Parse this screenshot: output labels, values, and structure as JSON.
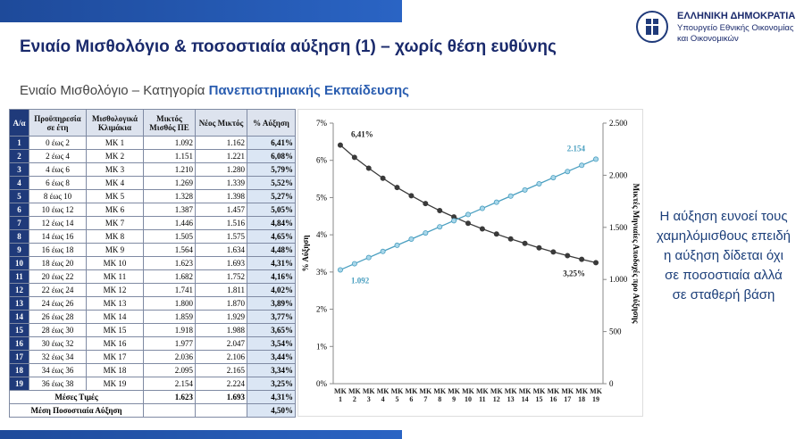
{
  "header": {
    "title": "Ενιαίο Μισθολόγιο & ποσοστιαία αύξηση (1) – χωρίς θέση ευθύνης",
    "subtitle": "Ενιαίο Μισθολόγιο – Κατηγορία ",
    "subtitle_bold": "Πανεπιστημιακής Εκπαίδευσης"
  },
  "logo": {
    "line1": "ΕΛΛΗΝΙΚΗ ΔΗΜΟΚΡΑΤΙΑ",
    "line2": "Υπουργείο Εθνικής Οικονομίας",
    "line3": "και Οικονομικών"
  },
  "table": {
    "columns": [
      "Α/α",
      "Προϋπηρεσία σε έτη",
      "Μισθολογικά Κλιμάκια",
      "Μικτός Μισθός ΠΕ",
      "Νέος Μικτός",
      "% Αύξηση"
    ],
    "rows": [
      [
        "1",
        "0 έως 2",
        "ΜΚ 1",
        "1.092",
        "1.162",
        "6,41%"
      ],
      [
        "2",
        "2 έως 4",
        "ΜΚ 2",
        "1.151",
        "1.221",
        "6,08%"
      ],
      [
        "3",
        "4 έως 6",
        "ΜΚ 3",
        "1.210",
        "1.280",
        "5,79%"
      ],
      [
        "4",
        "6 έως 8",
        "ΜΚ 4",
        "1.269",
        "1.339",
        "5,52%"
      ],
      [
        "5",
        "8 έως 10",
        "ΜΚ 5",
        "1.328",
        "1.398",
        "5,27%"
      ],
      [
        "6",
        "10 έως 12",
        "ΜΚ 6",
        "1.387",
        "1.457",
        "5,05%"
      ],
      [
        "7",
        "12 έως 14",
        "ΜΚ 7",
        "1.446",
        "1.516",
        "4,84%"
      ],
      [
        "8",
        "14 έως 16",
        "ΜΚ 8",
        "1.505",
        "1.575",
        "4,65%"
      ],
      [
        "9",
        "16 έως 18",
        "ΜΚ 9",
        "1.564",
        "1.634",
        "4,48%"
      ],
      [
        "10",
        "18 έως 20",
        "ΜΚ 10",
        "1.623",
        "1.693",
        "4,31%"
      ],
      [
        "11",
        "20 έως 22",
        "ΜΚ 11",
        "1.682",
        "1.752",
        "4,16%"
      ],
      [
        "12",
        "22 έως 24",
        "ΜΚ 12",
        "1.741",
        "1.811",
        "4,02%"
      ],
      [
        "13",
        "24 έως 26",
        "ΜΚ 13",
        "1.800",
        "1.870",
        "3,89%"
      ],
      [
        "14",
        "26 έως 28",
        "ΜΚ 14",
        "1.859",
        "1.929",
        "3,77%"
      ],
      [
        "15",
        "28 έως 30",
        "ΜΚ 15",
        "1.918",
        "1.988",
        "3,65%"
      ],
      [
        "16",
        "30 έως 32",
        "ΜΚ 16",
        "1.977",
        "2.047",
        "3,54%"
      ],
      [
        "17",
        "32 έως 34",
        "ΜΚ 17",
        "2.036",
        "2.106",
        "3,44%"
      ],
      [
        "18",
        "34 έως 36",
        "ΜΚ 18",
        "2.095",
        "2.165",
        "3,34%"
      ],
      [
        "19",
        "36 έως 38",
        "ΜΚ 19",
        "2.154",
        "2.224",
        "3,25%"
      ]
    ],
    "averages": {
      "label": "Μέσες Τιμές",
      "values": [
        "1.623",
        "1.693",
        "4,31%"
      ]
    },
    "mean_increase": {
      "label": "Μέση Ποσοστιαία Αύξηση",
      "value": "4,50%"
    }
  },
  "chart_data": {
    "type": "line",
    "y_label": "% Αύξηση",
    "y2_label": "Μικτές Μηνιαίες Αποδοχές προ Αύξησης",
    "categories": [
      "ΜΚ 1",
      "ΜΚ 2",
      "ΜΚ 3",
      "ΜΚ 4",
      "ΜΚ 5",
      "ΜΚ 6",
      "ΜΚ 7",
      "ΜΚ 8",
      "ΜΚ 9",
      "ΜΚ 10",
      "ΜΚ 11",
      "ΜΚ 12",
      "ΜΚ 13",
      "ΜΚ 14",
      "ΜΚ 15",
      "ΜΚ 16",
      "ΜΚ 17",
      "ΜΚ 18",
      "ΜΚ 19"
    ],
    "series": [
      {
        "color": "#3a3a3a",
        "axis": "y",
        "values": [
          6.41,
          6.08,
          5.79,
          5.52,
          5.27,
          5.05,
          4.84,
          4.65,
          4.48,
          4.31,
          4.16,
          4.02,
          3.89,
          3.77,
          3.65,
          3.54,
          3.44,
          3.34,
          3.25
        ],
        "value_labels": [
          "6,41%",
          null,
          null,
          null,
          null,
          null,
          null,
          null,
          null,
          null,
          null,
          null,
          null,
          null,
          null,
          null,
          null,
          null,
          "3,25%"
        ]
      },
      {
        "color": "#4a9fc0",
        "axis": "y2",
        "values": [
          1092,
          1151,
          1210,
          1269,
          1328,
          1387,
          1446,
          1505,
          1564,
          1623,
          1682,
          1741,
          1800,
          1859,
          1918,
          1977,
          2036,
          2095,
          2154
        ],
        "value_labels": [
          "1.092",
          null,
          null,
          null,
          null,
          null,
          null,
          null,
          null,
          null,
          null,
          null,
          null,
          null,
          null,
          null,
          null,
          null,
          "2.154"
        ]
      }
    ],
    "ylim": [
      0,
      7
    ],
    "yticks": [
      {
        "value": 0,
        "label": "0%"
      },
      {
        "value": 1,
        "label": "1%"
      },
      {
        "value": 2,
        "label": "2%"
      },
      {
        "value": 3,
        "label": "3%"
      },
      {
        "value": 4,
        "label": "4%"
      },
      {
        "value": 5,
        "label": "5%"
      },
      {
        "value": 6,
        "label": "6%"
      },
      {
        "value": 7,
        "label": "7%"
      }
    ],
    "y2lim": [
      0,
      2500
    ],
    "y2ticks": [
      0,
      500,
      {
        "value": 1000,
        "label": "1.000"
      },
      {
        "value": 1500,
        "label": "1.500"
      },
      {
        "value": 2000,
        "label": "2.000"
      },
      {
        "value": 2500,
        "label": "2.500"
      }
    ],
    "grid": false
  },
  "side_note": "Η αύξηση ευνοεί τους χαμηλόμισθους επειδή η αύξηση δίδεται όχι σε ποσοστιαία αλλά σε σταθερή βάση"
}
